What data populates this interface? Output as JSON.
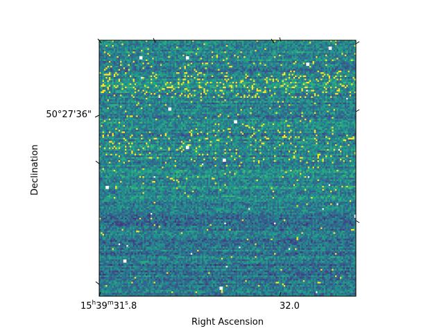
{
  "chart_data": {
    "type": "heatmap",
    "title": "",
    "xlabel": "Right Ascension",
    "ylabel": "Declination",
    "colormap": "viridis",
    "grid": false,
    "colorbar": false,
    "x_ticks": [
      {
        "label_hms": {
          "h": "15",
          "m": "39",
          "s_int": "31",
          "s_frac": ".8"
        }
      },
      {
        "label_hms": {
          "h": "",
          "m": "",
          "s_int": "32",
          "s_frac": ".0"
        }
      }
    ],
    "y_ticks": [
      {
        "label": "50°27'36\""
      }
    ],
    "image": {
      "rows": 160,
      "cols": 160,
      "value_range": [
        0,
        1
      ],
      "description_of_structure": "noisy sky background with horizontal streaks; bright saturated pixels concentrated in a band near the top; white pixels mark NaN/masked values"
    },
    "colors": {
      "low": "#440154",
      "mid": "#21918c",
      "high": "#fde725",
      "masked": "#ffffff",
      "axis": "#000000"
    }
  }
}
